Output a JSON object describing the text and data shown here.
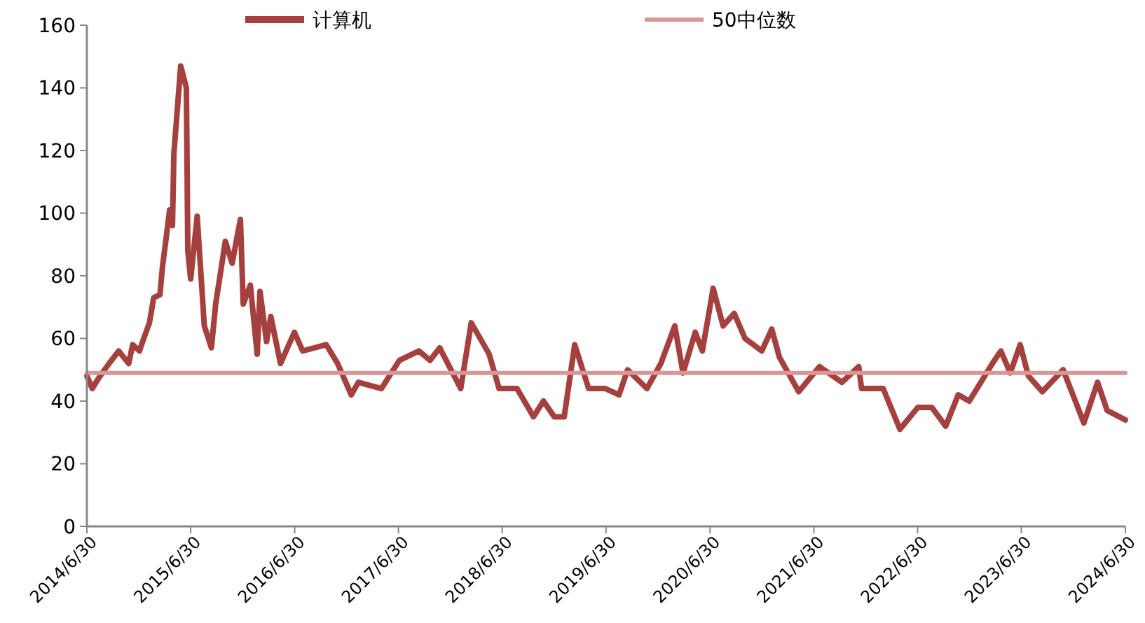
{
  "chart_data": {
    "type": "line",
    "legend": "top",
    "grid": false,
    "line_style": "solid",
    "marker": "none",
    "xlim": [
      "2014-06-30",
      "2024-06-30"
    ],
    "xticks": [
      {
        "value": "2014-06-30",
        "label": "2014/6/30"
      },
      {
        "value": "2015-06-30",
        "label": "2015/6/30"
      },
      {
        "value": "2016-06-30",
        "label": "2016/6/30"
      },
      {
        "value": "2017-06-30",
        "label": "2017/6/30"
      },
      {
        "value": "2018-06-30",
        "label": "2018/6/30"
      },
      {
        "value": "2019-06-30",
        "label": "2019/6/30"
      },
      {
        "value": "2020-06-30",
        "label": "2020/6/30"
      },
      {
        "value": "2021-06-30",
        "label": "2021/6/30"
      },
      {
        "value": "2022-06-30",
        "label": "2022/6/30"
      },
      {
        "value": "2023-06-30",
        "label": "2023/6/30"
      },
      {
        "value": "2024-06-30",
        "label": "2024/6/30"
      }
    ],
    "ylim": [
      0,
      160
    ],
    "yticks": [
      0,
      20,
      40,
      60,
      80,
      100,
      120,
      140,
      160
    ],
    "series": [
      {
        "name": "计算机",
        "color": "#a5403e",
        "x": [
          "2014-06-30",
          "2014-07-19",
          "2014-08-08",
          "2014-09-16",
          "2014-10-20",
          "2014-11-24",
          "2014-12-08",
          "2015-01-01",
          "2015-01-16",
          "2015-02-05",
          "2015-02-20",
          "2015-03-14",
          "2015-03-23",
          "2015-04-02",
          "2015-04-17",
          "2015-04-27",
          "2015-05-02",
          "2015-05-26",
          "2015-06-15",
          "2015-06-20",
          "2015-06-30",
          "2015-07-23",
          "2015-08-17",
          "2015-09-11",
          "2015-09-26",
          "2015-10-30",
          "2015-11-23",
          "2015-12-22",
          "2016-01-01",
          "2016-01-26",
          "2016-02-19",
          "2016-02-29",
          "2016-03-23",
          "2016-04-07",
          "2016-05-11",
          "2016-06-29",
          "2016-07-28",
          "2016-10-19",
          "2016-11-28",
          "2017-01-15",
          "2017-02-09",
          "2017-05-01",
          "2017-07-03",
          "2017-09-10",
          "2017-10-19",
          "2017-11-22",
          "2018-02-04",
          "2018-03-13",
          "2018-05-15",
          "2018-06-19",
          "2018-08-21",
          "2018-10-18",
          "2018-11-22",
          "2018-12-30",
          "2019-02-03",
          "2019-03-12",
          "2019-04-30",
          "2019-06-28",
          "2019-08-15",
          "2019-09-14",
          "2019-11-21",
          "2020-01-09",
          "2020-02-27",
          "2020-03-27",
          "2020-05-09",
          "2020-06-03",
          "2020-07-11",
          "2020-08-15",
          "2020-09-23",
          "2020-10-31",
          "2020-12-29",
          "2021-02-02",
          "2021-03-01",
          "2021-05-08",
          "2021-07-20",
          "2021-10-07",
          "2021-12-05",
          "2021-12-15",
          "2022-03-01",
          "2022-04-29",
          "2022-07-01",
          "2022-08-19",
          "2022-10-07",
          "2022-11-20",
          "2022-12-29",
          "2023-03-20",
          "2023-04-19",
          "2023-05-22",
          "2023-06-26",
          "2023-07-25",
          "2023-09-12",
          "2023-11-24",
          "2024-02-05",
          "2024-03-24",
          "2024-04-27",
          "2024-06-30"
        ],
        "values": [
          48,
          44,
          47,
          52,
          56,
          52,
          58,
          56,
          60,
          65,
          73,
          74,
          83,
          90,
          101,
          96,
          119,
          147,
          140,
          88,
          79,
          99,
          64,
          57,
          71,
          91,
          84,
          98,
          71,
          77,
          55,
          75,
          59,
          67,
          52,
          62,
          56,
          58,
          52,
          42,
          46,
          44,
          53,
          56,
          53,
          57,
          44,
          65,
          55,
          44,
          44,
          35,
          40,
          35,
          35,
          58,
          44,
          44,
          42,
          50,
          44,
          52,
          64,
          49,
          62,
          56,
          76,
          64,
          68,
          60,
          56,
          63,
          54,
          43,
          51,
          46,
          51,
          44,
          44,
          31,
          38,
          38,
          32,
          42,
          40,
          52,
          56,
          49,
          58,
          48,
          43,
          50,
          33,
          46,
          37,
          34
        ]
      },
      {
        "name": "50中位数",
        "color": "#d99694",
        "x": [
          "2014-06-30",
          "2024-06-30"
        ],
        "values": [
          49,
          49
        ]
      }
    ]
  }
}
